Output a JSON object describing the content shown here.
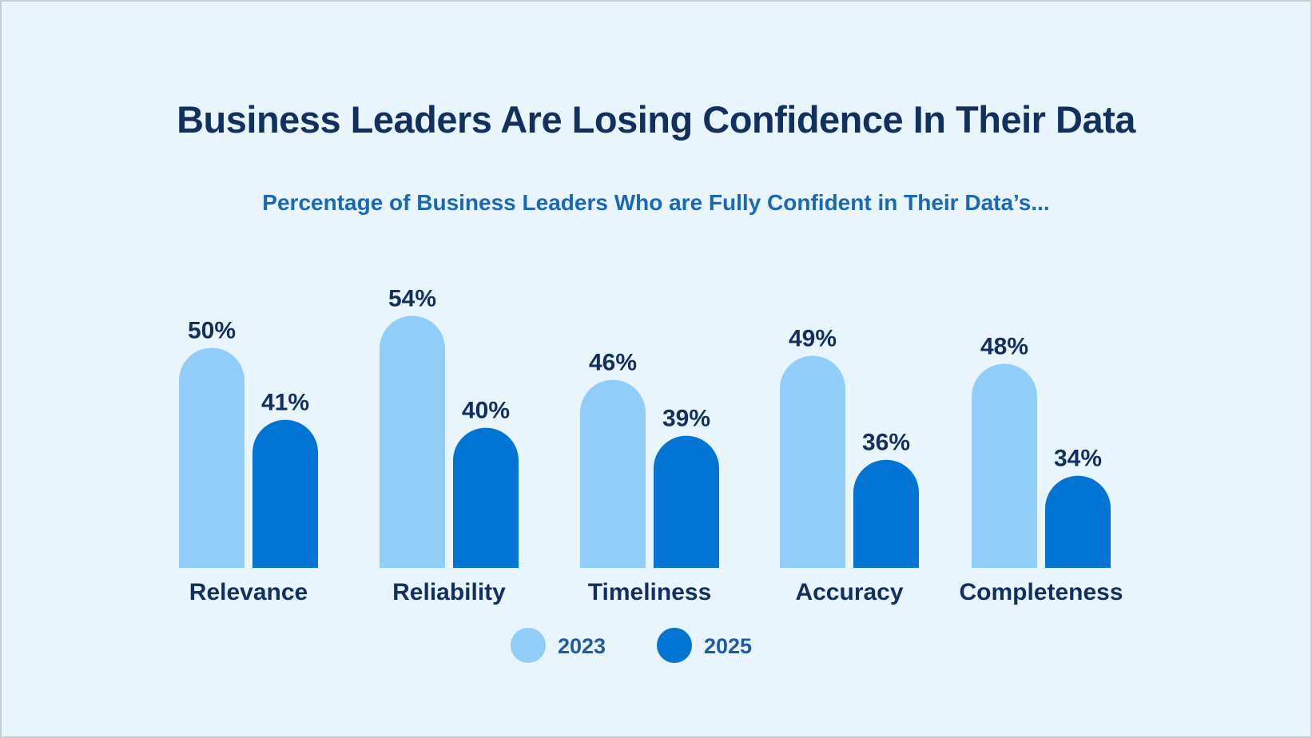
{
  "chart_data": {
    "type": "bar",
    "title": "Business Leaders Are Losing Confidence In Their Data",
    "subtitle": "Percentage of Business Leaders Who are Fully Confident in Their Data’s...",
    "categories": [
      "Relevance",
      "Reliability",
      "Timeliness",
      "Accuracy",
      "Completeness"
    ],
    "series": [
      {
        "name": "2023",
        "values": [
          50,
          54,
          46,
          49,
          48
        ],
        "labels": [
          "50%",
          "54%",
          "46%",
          "49%",
          "48%"
        ],
        "color": "#90CEF9"
      },
      {
        "name": "2025",
        "values": [
          41,
          40,
          39,
          36,
          34
        ],
        "labels": [
          "41%",
          "40%",
          "39%",
          "36%",
          "34%"
        ],
        "color": "#0275D4"
      }
    ],
    "unit": "%",
    "grid": false,
    "legend": "bottom-center"
  }
}
